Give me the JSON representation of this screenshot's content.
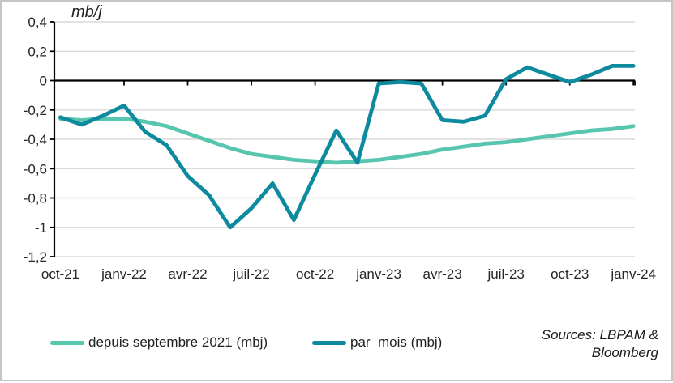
{
  "chart_data": {
    "type": "line",
    "unit_label": "mb/j",
    "x": [
      "oct-21",
      "nov-21",
      "déc-21",
      "janv-22",
      "févr-22",
      "mars-22",
      "avr-22",
      "mai-22",
      "juin-22",
      "juil-22",
      "août-22",
      "sept-22",
      "oct-22",
      "nov-22",
      "déc-22",
      "janv-23",
      "févr-23",
      "mars-23",
      "avr-23",
      "mai-23",
      "juin-23",
      "juil-23",
      "août-23",
      "sept-23",
      "oct-23",
      "nov-23",
      "déc-23",
      "janv-24"
    ],
    "series": [
      {
        "id": "depuis-septembre-2021",
        "name": "depuis septembre 2021 (mbj)",
        "color": "#58c6ae",
        "values": [
          -0.26,
          -0.27,
          -0.26,
          -0.26,
          -0.28,
          -0.31,
          -0.36,
          -0.41,
          -0.46,
          -0.5,
          -0.52,
          -0.54,
          -0.55,
          -0.56,
          -0.55,
          -0.54,
          -0.52,
          -0.5,
          -0.47,
          -0.45,
          -0.43,
          -0.42,
          -0.4,
          -0.38,
          -0.36,
          -0.34,
          -0.33,
          -0.31
        ]
      },
      {
        "id": "par-mois",
        "name": "par  mois (mbj)",
        "color": "#0e8a9e",
        "values": [
          -0.25,
          -0.3,
          -0.24,
          -0.17,
          -0.35,
          -0.44,
          -0.65,
          -0.78,
          -1.0,
          -0.87,
          -0.7,
          -0.95,
          -0.64,
          -0.34,
          -0.56,
          -0.02,
          -0.01,
          -0.02,
          -0.27,
          -0.28,
          -0.24,
          0.01,
          0.09,
          0.04,
          -0.01,
          0.04,
          0.1,
          0.1
        ]
      }
    ],
    "ylim": [
      -1.2,
      0.4
    ],
    "ytick_values": [
      0.4,
      0.2,
      0,
      -0.2,
      -0.4,
      -0.6,
      -0.8,
      -1,
      -1.2
    ],
    "ytick_labels": [
      "0,4",
      "0,2",
      "0",
      "-0,2",
      "-0,4",
      "-0,6",
      "-0,8",
      "-1",
      "-1,2"
    ],
    "xticks": [
      {
        "i": 0,
        "label": "oct-21"
      },
      {
        "i": 3,
        "label": "janv-22"
      },
      {
        "i": 6,
        "label": "avr-22"
      },
      {
        "i": 9,
        "label": "juil-22"
      },
      {
        "i": 12,
        "label": "oct-22"
      },
      {
        "i": 15,
        "label": "janv-23"
      },
      {
        "i": 18,
        "label": "avr-23"
      },
      {
        "i": 21,
        "label": "juil-23"
      },
      {
        "i": 24,
        "label": "oct-23"
      },
      {
        "i": 27,
        "label": "janv-24"
      }
    ],
    "grid": "horizontal",
    "legend_position": "bottom",
    "colors": {
      "grid": "#d9d9d9",
      "axis": "#000000",
      "text": "#262626"
    }
  },
  "source": {
    "line1": "Sources: LBPAM &",
    "line2": "Bloomberg"
  }
}
